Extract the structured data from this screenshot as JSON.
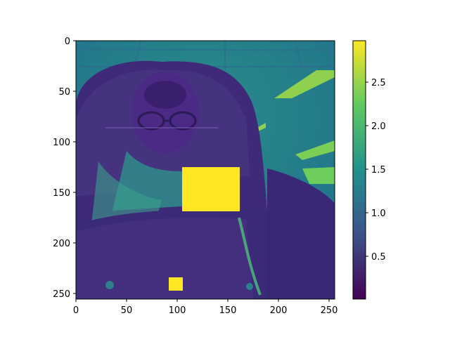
{
  "image": {
    "type": "heatmap",
    "description_kind": "imshow",
    "colormap": "viridis",
    "colormap_stops": [
      "#440154",
      "#3b528b",
      "#21918c",
      "#5ec962",
      "#fde725"
    ],
    "x_ticks": [
      "0",
      "50",
      "100",
      "150",
      "200",
      "250"
    ],
    "y_ticks": [
      "0",
      "50",
      "100",
      "150",
      "200",
      "250"
    ],
    "x_range": [
      0,
      255
    ],
    "y_range": [
      0,
      255
    ],
    "colorbar": {
      "range": [
        0.0,
        3.0
      ],
      "ticks": [
        "0.5",
        "1.0",
        "1.5",
        "2.0",
        "2.5"
      ]
    },
    "occlusion_patches": [
      {
        "x0": 105,
        "x1": 162,
        "y0": 125,
        "y1": 169,
        "value": 3.0
      },
      {
        "x0": 92,
        "x1": 106,
        "y0": 235,
        "y1": 248,
        "value": 3.0
      }
    ]
  }
}
